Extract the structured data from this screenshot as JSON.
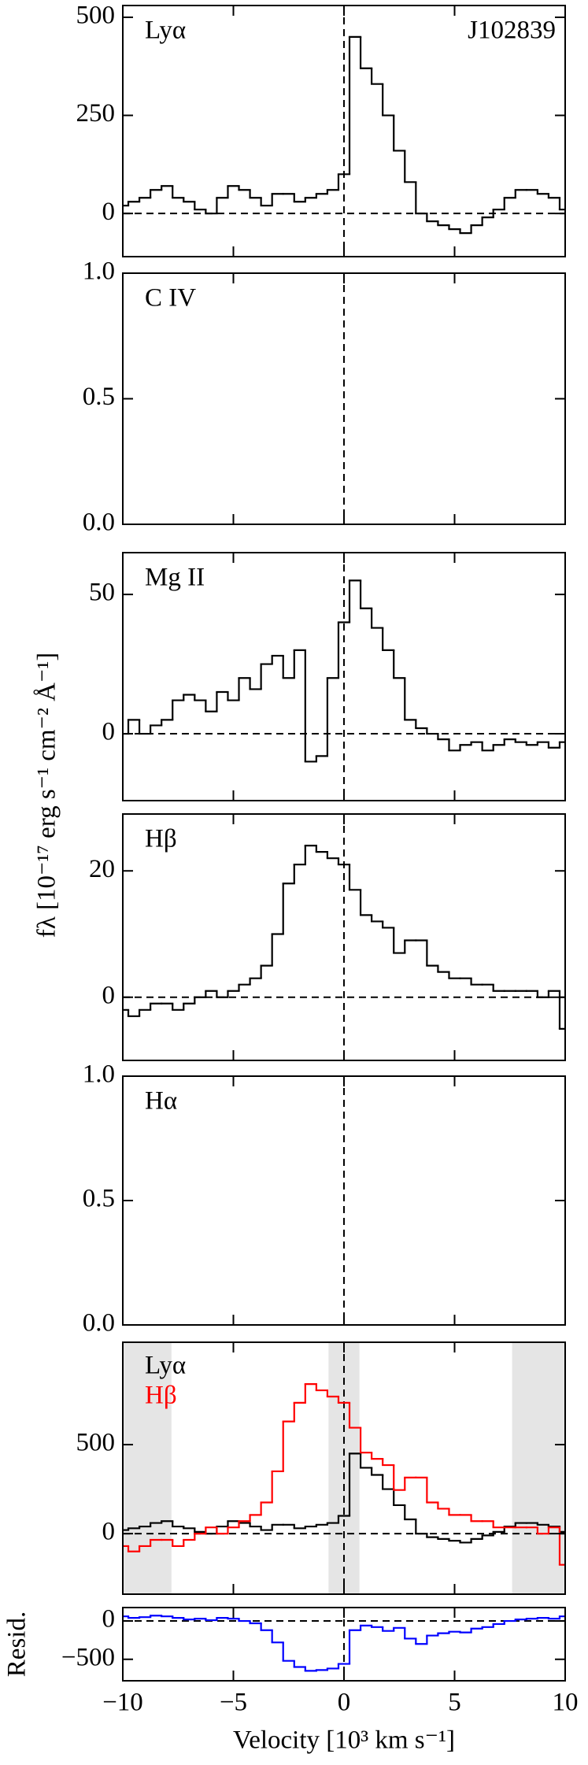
{
  "ylabel": "fλ [10⁻¹⁷ erg s⁻¹ cm⁻² Å⁻¹]",
  "chart_data": [
    {
      "type": "line",
      "title": "Lyα",
      "annotation": "J102839",
      "xlim": [
        -10,
        10
      ],
      "xticks": [
        {
          "value": -10,
          "label": "−10"
        },
        {
          "value": -5,
          "label": "−5"
        },
        0,
        5,
        10
      ],
      "ylim": [
        -110,
        530
      ],
      "yticks": [
        0,
        250,
        500
      ],
      "hline": 0,
      "vline": 0,
      "x": [
        -10,
        -9.5,
        -9,
        -8.5,
        -8,
        -7.5,
        -7,
        -6.5,
        -6,
        -5.5,
        -5,
        -4.5,
        -4,
        -3.5,
        -3,
        -2.5,
        -2,
        -1.5,
        -1,
        -0.5,
        0,
        0.5,
        1,
        1.5,
        2,
        2.5,
        3,
        3.5,
        4,
        4.5,
        5,
        5.5,
        6,
        6.5,
        7,
        7.5,
        8,
        8.5,
        9,
        9.5,
        10
      ],
      "series": [
        {
          "name": "Lyα",
          "color": "#000000",
          "values": [
            20,
            30,
            40,
            60,
            70,
            40,
            30,
            10,
            0,
            40,
            70,
            60,
            40,
            20,
            50,
            50,
            30,
            40,
            50,
            60,
            100,
            450,
            370,
            330,
            250,
            160,
            80,
            0,
            -20,
            -30,
            -40,
            -50,
            -30,
            -10,
            10,
            40,
            60,
            60,
            50,
            40,
            10
          ]
        }
      ]
    },
    {
      "type": "line",
      "title": "C IV",
      "xlim": [
        -10,
        10
      ],
      "xticks": [
        {
          "value": -10,
          "label": "−10"
        },
        {
          "value": -5,
          "label": "−5"
        },
        0,
        5,
        10
      ],
      "ylim": [
        0,
        1
      ],
      "yticks": [
        {
          "value": 0,
          "label": "0.0"
        },
        0.5,
        {
          "value": 1,
          "label": "1.0"
        }
      ],
      "vline": 0,
      "x": [],
      "series": []
    },
    {
      "type": "line",
      "title": "Mg II",
      "xlim": [
        -10,
        10
      ],
      "xticks": [
        {
          "value": -10,
          "label": "−10"
        },
        {
          "value": -5,
          "label": "−5"
        },
        0,
        5,
        10
      ],
      "ylim": [
        -24,
        65
      ],
      "yticks": [
        0,
        50
      ],
      "hline": 0,
      "vline": 0,
      "x": [
        -10,
        -9.5,
        -9,
        -8.5,
        -8,
        -7.5,
        -7,
        -6.5,
        -6,
        -5.5,
        -5,
        -4.5,
        -4,
        -3.5,
        -3,
        -2.5,
        -2,
        -1.5,
        -1,
        -0.5,
        0,
        0.5,
        1,
        1.5,
        2,
        2.5,
        3,
        3.5,
        4,
        4.5,
        5,
        5.5,
        6,
        6.5,
        7,
        7.5,
        8,
        8.5,
        9,
        9.5,
        10
      ],
      "series": [
        {
          "name": "Mg II",
          "color": "#000000",
          "values": [
            0,
            5,
            0,
            3,
            5,
            12,
            14,
            12,
            8,
            15,
            12,
            20,
            16,
            25,
            28,
            20,
            30,
            -10,
            -8,
            20,
            40,
            55,
            45,
            38,
            30,
            20,
            5,
            2,
            0,
            -2,
            -6,
            -4,
            -3,
            -6,
            -4,
            -2,
            -3,
            -4,
            -3,
            -5,
            -3
          ]
        }
      ]
    },
    {
      "type": "line",
      "title": "Hβ",
      "xlim": [
        -10,
        10
      ],
      "xticks": [
        {
          "value": -10,
          "label": "−10"
        },
        {
          "value": -5,
          "label": "−5"
        },
        0,
        5,
        10
      ],
      "ylim": [
        -10,
        29
      ],
      "yticks": [
        0,
        20
      ],
      "hline": 0,
      "vline": 0,
      "x": [
        -10,
        -9.5,
        -9,
        -8.5,
        -8,
        -7.5,
        -7,
        -6.5,
        -6,
        -5.5,
        -5,
        -4.5,
        -4,
        -3.5,
        -3,
        -2.5,
        -2,
        -1.5,
        -1,
        -0.5,
        0,
        0.5,
        1,
        1.5,
        2,
        2.5,
        3,
        3.5,
        4,
        4.5,
        5,
        5.5,
        6,
        6.5,
        7,
        7.5,
        8,
        8.5,
        9,
        9.5,
        10
      ],
      "series": [
        {
          "name": "Hβ",
          "color": "#000000",
          "values": [
            -2,
            -3,
            -2,
            -1,
            -1,
            -2,
            -1,
            0,
            1,
            0,
            1,
            2,
            3,
            5,
            10,
            18,
            21,
            24,
            23,
            22,
            21,
            17,
            13,
            12,
            11,
            7,
            9,
            9,
            5,
            4,
            3,
            3,
            2,
            2,
            1,
            1,
            1,
            1,
            0,
            1,
            -5
          ]
        }
      ]
    },
    {
      "type": "line",
      "title": "Hα",
      "xlim": [
        -10,
        10
      ],
      "xticks": [
        {
          "value": -10,
          "label": "−10"
        },
        {
          "value": -5,
          "label": "−5"
        },
        0,
        5,
        10
      ],
      "ylim": [
        0,
        1
      ],
      "yticks": [
        {
          "value": 0,
          "label": "0.0"
        },
        0.5,
        {
          "value": 1,
          "label": "1.0"
        }
      ],
      "vline": 0,
      "x": [],
      "series": []
    },
    {
      "type": "line",
      "legend": "upper left",
      "xlim": [
        -10,
        10
      ],
      "xticks": [
        {
          "value": -10,
          "label": "−10"
        },
        {
          "value": -5,
          "label": "−5"
        },
        0,
        5,
        10
      ],
      "ylim": [
        -340,
        1075
      ],
      "yticks": [
        0,
        500
      ],
      "hline": 0,
      "vline": 0,
      "shaded_regions": [
        [
          -10,
          -7.8
        ],
        [
          -0.7,
          0.7
        ],
        [
          7.6,
          10
        ]
      ],
      "shade_color": "#e5e5e5",
      "x": [
        -10,
        -9.5,
        -9,
        -8.5,
        -8,
        -7.5,
        -7,
        -6.5,
        -6,
        -5.5,
        -5,
        -4.5,
        -4,
        -3.5,
        -3,
        -2.5,
        -2,
        -1.5,
        -1,
        -0.5,
        0,
        0.5,
        1,
        1.5,
        2,
        2.5,
        3,
        3.5,
        4,
        4.5,
        5,
        5.5,
        6,
        6.5,
        7,
        7.5,
        8,
        8.5,
        9,
        9.5,
        10
      ],
      "series": [
        {
          "name": "Lyα",
          "color": "#000000",
          "values": [
            20,
            30,
            40,
            60,
            70,
            40,
            30,
            10,
            0,
            40,
            70,
            60,
            40,
            20,
            50,
            50,
            30,
            40,
            50,
            60,
            100,
            450,
            370,
            330,
            250,
            160,
            80,
            0,
            -20,
            -30,
            -40,
            -50,
            -30,
            -10,
            10,
            40,
            60,
            60,
            50,
            40,
            10
          ]
        },
        {
          "name": "Hβ",
          "color": "#ff0000",
          "values": [
            -70,
            -100,
            -70,
            -35,
            -35,
            -70,
            -35,
            0,
            35,
            0,
            35,
            70,
            105,
            175,
            350,
            630,
            735,
            840,
            805,
            770,
            735,
            595,
            455,
            420,
            385,
            245,
            315,
            315,
            175,
            140,
            105,
            105,
            70,
            70,
            35,
            35,
            35,
            35,
            0,
            35,
            -175
          ]
        }
      ]
    },
    {
      "type": "line",
      "ylabel": "Resid.",
      "xlabel": "Velocity [10³ km s⁻¹]",
      "xlim": [
        -10,
        10
      ],
      "xticks": [
        {
          "value": -10,
          "label": "−10"
        },
        {
          "value": -5,
          "label": "−5"
        },
        0,
        5,
        10
      ],
      "ylim": [
        -780,
        175
      ],
      "yticks": [
        {
          "value": -500,
          "label": "−500"
        },
        0
      ],
      "hline": 0,
      "vline": 0,
      "x": [
        -10,
        -9.5,
        -9,
        -8.5,
        -8,
        -7.5,
        -7,
        -6.5,
        -6,
        -5.5,
        -5,
        -4.5,
        -4,
        -3.5,
        -3,
        -2.5,
        -2,
        -1.5,
        -1,
        -0.5,
        0,
        0.5,
        1,
        1.5,
        2,
        2.5,
        3,
        3.5,
        4,
        4.5,
        5,
        5.5,
        6,
        6.5,
        7,
        7.5,
        8,
        8.5,
        9,
        9.5,
        10
      ],
      "series": [
        {
          "name": "Resid.",
          "color": "#0000ff",
          "values": [
            60,
            40,
            50,
            70,
            60,
            40,
            20,
            30,
            10,
            40,
            30,
            0,
            -30,
            -120,
            -280,
            -520,
            -600,
            -650,
            -640,
            -620,
            -560,
            -120,
            -60,
            -80,
            -130,
            -90,
            -230,
            -300,
            -190,
            -160,
            -140,
            -150,
            -100,
            -80,
            -40,
            0,
            20,
            30,
            40,
            30,
            60
          ]
        }
      ]
    }
  ]
}
